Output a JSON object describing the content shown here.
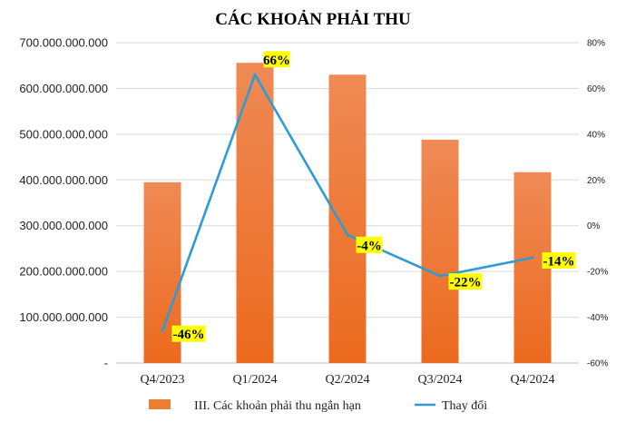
{
  "chart_data": {
    "type": "bar",
    "title": "CÁC KHOẢN PHẢI THU",
    "categories": [
      "Q4/2023",
      "Q1/2024",
      "Q2/2024",
      "Q3/2024",
      "Q4/2024"
    ],
    "series": [
      {
        "name": "III. Các khoản phải thu ngắn hạn",
        "type": "bar",
        "axis": "left",
        "values": [
          395000000000,
          656000000000,
          630000000000,
          488000000000,
          417000000000
        ],
        "color": "#ED7D31"
      },
      {
        "name": "Thay đổi",
        "type": "line",
        "axis": "right",
        "values": [
          -46,
          66,
          -4,
          -22,
          -14
        ],
        "data_labels": [
          "-46%",
          "66%",
          "-4%",
          "-22%",
          "-14%"
        ],
        "color": "#2E9BD6"
      }
    ],
    "left_axis": {
      "ylim": [
        0,
        700000000000
      ],
      "ticks": [
        0,
        100000000000,
        200000000000,
        300000000000,
        400000000000,
        500000000000,
        600000000000,
        700000000000
      ],
      "tick_labels": [
        "-",
        "100.000.000.000",
        "200.000.000.000",
        "300.000.000.000",
        "400.000.000.000",
        "500.000.000.000",
        "600.000.000.000",
        "700.000.000.000"
      ]
    },
    "right_axis": {
      "ylim": [
        -60,
        80
      ],
      "ticks": [
        -60,
        -40,
        -20,
        0,
        20,
        40,
        60,
        80
      ],
      "tick_labels": [
        "-60%",
        "-40%",
        "-20%",
        "0%",
        "20%",
        "40%",
        "60%",
        "80%"
      ]
    },
    "label_highlight_color": "#FFFF00",
    "grid": true,
    "legend_position": "bottom"
  }
}
